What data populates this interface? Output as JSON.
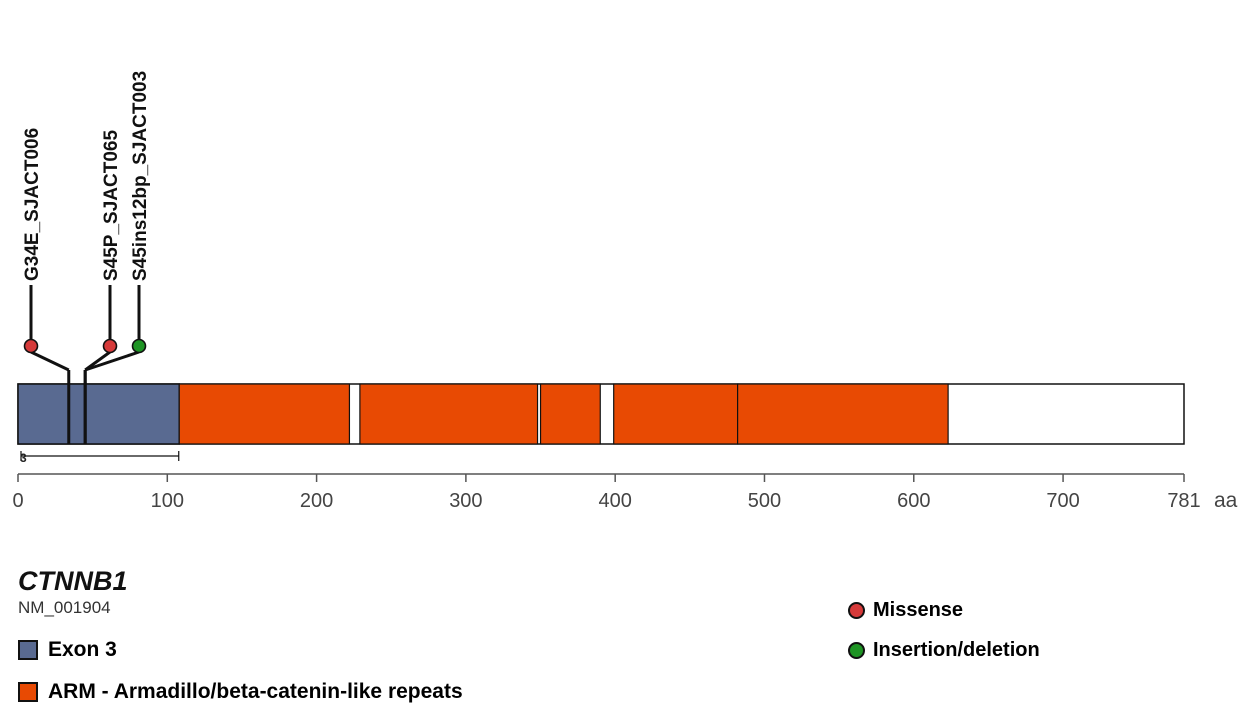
{
  "gene": {
    "name": "CTNNB1",
    "transcript": "NM_001904",
    "length": 781,
    "unit": "aa"
  },
  "axis": {
    "ticks": [
      0,
      100,
      200,
      300,
      400,
      500,
      600,
      700,
      781
    ]
  },
  "exon_marker": {
    "label": "3",
    "start": 1,
    "end": 108
  },
  "domains": [
    {
      "type": "ARM",
      "start": 108,
      "end": 222
    },
    {
      "type": "ARM",
      "start": 229,
      "end": 348
    },
    {
      "type": "ARM",
      "start": 350,
      "end": 390
    },
    {
      "type": "ARM",
      "start": 399,
      "end": 482
    },
    {
      "type": "ARM",
      "start": 482,
      "end": 623
    }
  ],
  "mutations": [
    {
      "label": "G34E_SJACT006",
      "position": 34,
      "class": "missense"
    },
    {
      "label": "S45P_SJACT065",
      "position": 45,
      "class": "missense"
    },
    {
      "label": "S45ins12bp_SJACT003",
      "position": 45,
      "class": "indel"
    }
  ],
  "legend": {
    "domains": [
      {
        "label": "Exon 3",
        "color": "#596a91"
      },
      {
        "label": "ARM - Armadillo/beta-catenin-like repeats",
        "color": "#e84a03"
      }
    ],
    "mutation_classes": [
      {
        "key": "missense",
        "label": "Missense",
        "color": "#d63a3a"
      },
      {
        "key": "indel",
        "label": "Insertion/deletion",
        "color": "#1e9424"
      }
    ]
  },
  "colors": {
    "protein_fill": "#ffffff",
    "outline": "#111111",
    "axis": "#555555"
  }
}
